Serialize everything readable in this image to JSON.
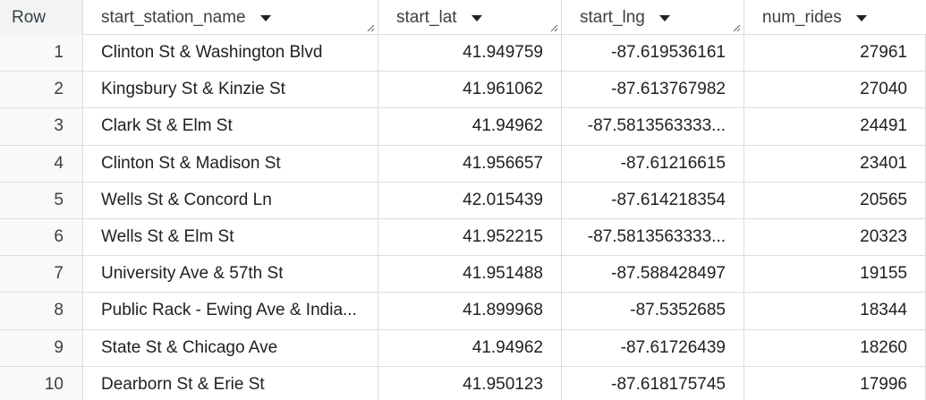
{
  "columns": {
    "row": "Row",
    "start_station_name": "start_station_name",
    "start_lat": "start_lat",
    "start_lng": "start_lng",
    "num_rides": "num_rides"
  },
  "icons": {
    "sort": "caret-down-icon",
    "resize": "column-resize-icon"
  },
  "rows": [
    {
      "row": "1",
      "name": "Clinton St & Washington Blvd",
      "lat": "41.949759",
      "lng": "-87.619536161",
      "rides": "27961"
    },
    {
      "row": "2",
      "name": "Kingsbury St & Kinzie St",
      "lat": "41.961062",
      "lng": "-87.613767982",
      "rides": "27040"
    },
    {
      "row": "3",
      "name": "Clark St & Elm St",
      "lat": "41.94962",
      "lng": "-87.5813563333...",
      "rides": "24491"
    },
    {
      "row": "4",
      "name": "Clinton St & Madison St",
      "lat": "41.956657",
      "lng": "-87.61216615",
      "rides": "23401"
    },
    {
      "row": "5",
      "name": "Wells St & Concord Ln",
      "lat": "42.015439",
      "lng": "-87.614218354",
      "rides": "20565"
    },
    {
      "row": "6",
      "name": "Wells St & Elm St",
      "lat": "41.952215",
      "lng": "-87.5813563333...",
      "rides": "20323"
    },
    {
      "row": "7",
      "name": "University Ave & 57th St",
      "lat": "41.951488",
      "lng": "-87.588428497",
      "rides": "19155"
    },
    {
      "row": "8",
      "name": "Public Rack - Ewing Ave & India...",
      "lat": "41.899968",
      "lng": "-87.5352685",
      "rides": "18344"
    },
    {
      "row": "9",
      "name": "State St & Chicago Ave",
      "lat": "41.94962",
      "lng": "-87.61726439",
      "rides": "18260"
    },
    {
      "row": "10",
      "name": "Dearborn St & Erie St",
      "lat": "41.950123",
      "lng": "-87.618175745",
      "rides": "17996"
    }
  ]
}
